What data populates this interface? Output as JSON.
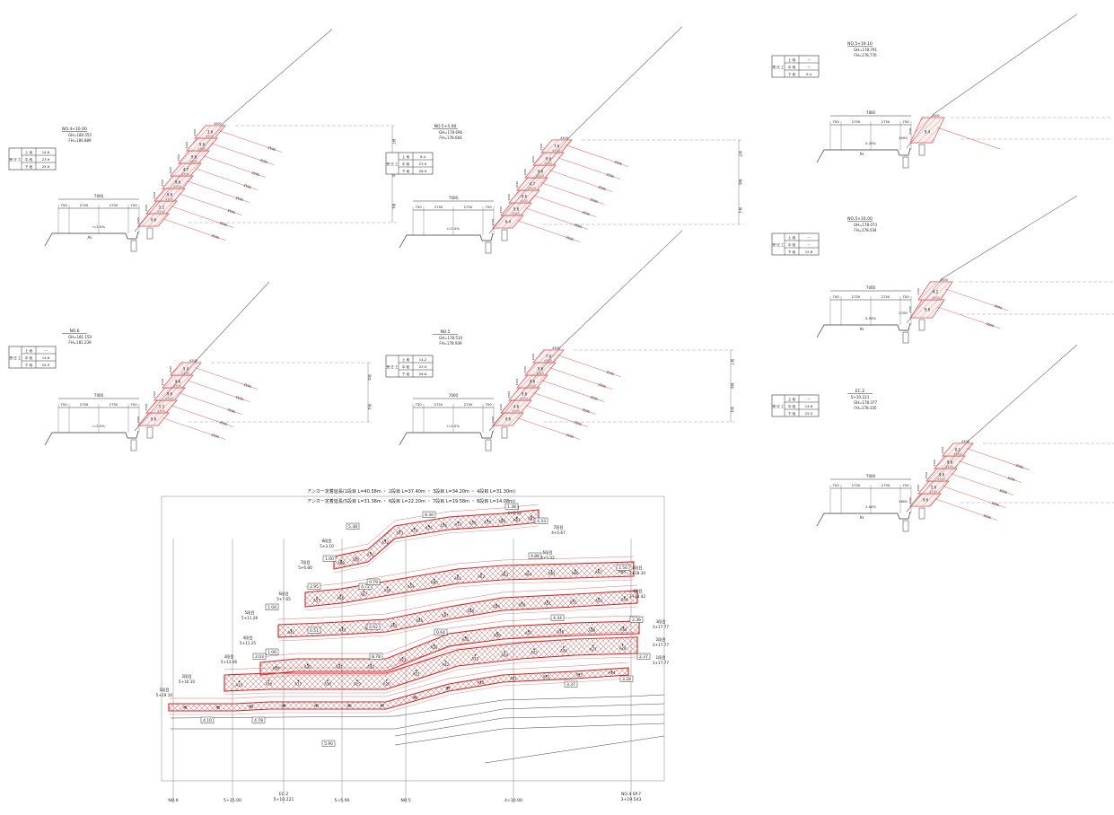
{
  "sections": [
    {
      "id": "sec-4p10",
      "station": "NO.4+10.00",
      "gh": "GH=180.555",
      "fh": "FH=180.889",
      "table": {
        "rows": [
          "上 段",
          "中 段",
          "下 段"
        ],
        "values": [
          "14.8",
          "23.9",
          "25.9"
        ],
        "vlabel": "受 圧 工"
      },
      "dims": [
        "7000",
        "750",
        "2750",
        "2750",
        "750"
      ],
      "grade": "i=2.0%",
      "ground": "As",
      "anchor_len": "3500",
      "steps": [
        {
          "label": "9.6",
          "w": "4500",
          "h": "2500"
        },
        {
          "label": "5.2",
          "w": "4500",
          "h": "2500"
        },
        {
          "label": "9.6",
          "w": "4500",
          "h": "2500"
        },
        {
          "label": "9.6",
          "w": "4500",
          "h": "2500"
        },
        {
          "label": "4.7",
          "w": "4500",
          "h": "2500"
        },
        {
          "label": "9.6",
          "w": "4500",
          "h": "2500"
        },
        {
          "label": "9.6",
          "w": "4500",
          "h": "2500"
        },
        {
          "label": "3.6",
          "w": "4500",
          "h": "2500"
        }
      ],
      "tiers": [
        "上段",
        "中段",
        "下段"
      ]
    },
    {
      "id": "sec-6",
      "station": "NO.6",
      "gh": "GH=181.150",
      "fh": "FH=181.239",
      "table": {
        "rows": [
          "上 段",
          "中 段",
          "下 段"
        ],
        "values": [
          "－",
          "14.6",
          "24.9"
        ],
        "vlabel": "受 圧 工"
      },
      "dims": [
        "7000",
        "750",
        "2750",
        "2750",
        "750"
      ],
      "grade": "i=2.0%",
      "anchor_len": "3500",
      "steps": [
        {
          "label": "9.6",
          "w": "4500",
          "h": "2500"
        },
        {
          "label": "5.3",
          "w": "4500",
          "h": "2500"
        },
        {
          "label": "9.6",
          "w": "4500",
          "h": "2500"
        },
        {
          "label": "9.6",
          "w": "4500",
          "h": "2500"
        },
        {
          "label": "5.4",
          "w": "4500",
          "h": "2500"
        }
      ],
      "tiers": [
        "中段",
        "下段"
      ]
    },
    {
      "id": "sec-5p5",
      "station": "NO.5+5.00",
      "gh": "GH=178.696",
      "fh": "FH=178.664",
      "table": {
        "rows": [
          "上 段",
          "中 段",
          "下 段"
        ],
        "values": [
          "6.4",
          "23.9",
          "26.9"
        ],
        "vlabel": "受 圧 工"
      },
      "dims": [
        "7000",
        "750",
        "2750",
        "2750",
        "750"
      ],
      "grade": "i=2.0%",
      "anchor_len": "3500",
      "steps": [
        {
          "label": "6.4",
          "w": "4500",
          "h": "2500"
        },
        {
          "label": "9.6",
          "w": "4500",
          "h": "2500"
        },
        {
          "label": "9.6",
          "w": "4500",
          "h": "2500"
        },
        {
          "label": "4.7",
          "w": "4500",
          "h": "2500"
        },
        {
          "label": "9.6",
          "w": "4500",
          "h": "2500"
        },
        {
          "label": "9.6",
          "w": "4500",
          "h": "2500"
        },
        {
          "label": "7.6",
          "w": "4500",
          "h": "2500"
        }
      ],
      "tiers": [
        "上段",
        "中段",
        "下段"
      ]
    },
    {
      "id": "sec-5",
      "station": "NO.5",
      "gh": "GH=178.510",
      "fh": "FH=178.939",
      "table": {
        "rows": [
          "上 段",
          "中 段",
          "下 段"
        ],
        "values": [
          "14.2",
          "23.9",
          "26.6"
        ],
        "vlabel": "受 圧 工"
      },
      "dims": [
        "7000",
        "750",
        "2750",
        "2750",
        "750"
      ],
      "grade": "i=2.0%",
      "anchor_len": "3500",
      "steps": [
        {
          "label": "9.6",
          "w": "4500",
          "h": "2500"
        },
        {
          "label": "4.6",
          "w": "4500",
          "h": "2500"
        },
        {
          "label": "9.6",
          "w": "4500",
          "h": "2500"
        },
        {
          "label": "9.6",
          "w": "4500",
          "h": "2500"
        },
        {
          "label": "9.6",
          "w": "4500",
          "h": "2500"
        },
        {
          "label": "7.6",
          "w": "4500",
          "h": "2500"
        }
      ],
      "tiers": [
        "上段",
        "中段",
        "下段"
      ]
    },
    {
      "id": "sec-5p19",
      "station": "NO.5+19.10",
      "gh": "GH=178.791",
      "fh": "FH=178.776",
      "table": {
        "rows": [
          "上 段",
          "中 段",
          "下 段"
        ],
        "values": [
          "－",
          "－",
          "9.4"
        ],
        "vlabel": "受 圧 工"
      },
      "dims": [
        "7800",
        "750",
        "2750",
        "2750",
        "750"
      ],
      "grade": "0.25%",
      "ground": "As",
      "extra": "1000",
      "steps": [
        {
          "label": "9.4",
          "w": "4500",
          "h": "2500"
        }
      ]
    },
    {
      "id": "sec-5p10",
      "station": "NO.5+10.00",
      "gh": "GH=178.073",
      "fh": "FH=178.034",
      "table": {
        "rows": [
          "上 段",
          "中 段",
          "下 段"
        ],
        "values": [
          "－",
          "－",
          "15.8"
        ],
        "vlabel": "受 圧 工"
      },
      "dims": [
        "7000",
        "750",
        "2750",
        "2750",
        "750"
      ],
      "grade": "0.55%",
      "ground": "As",
      "extra": "1700",
      "anchor_len": "3000",
      "steps": [
        {
          "label": "9.6",
          "w": "4500",
          "h": "2500"
        },
        {
          "label": "6.2",
          "w": "4500",
          "h": "2500"
        }
      ]
    },
    {
      "id": "sec-ec2",
      "station": "EC.2",
      "sub": "5+10.221",
      "gh": "GH=178.377",
      "fh": "FH=178.335",
      "table": {
        "rows": [
          "上 段",
          "中 段",
          "下 段"
        ],
        "values": [
          "－",
          "14.6",
          "25.3"
        ],
        "vlabel": "受 圧 工"
      },
      "dims": [
        "7000",
        "750",
        "2750",
        "2750",
        "750"
      ],
      "grade": "1.50%",
      "ground": "As",
      "extra": "1600",
      "anchor_len": "3000",
      "steps": [
        {
          "label": "9.6",
          "w": "4500",
          "h": "2500"
        },
        {
          "label": "5.6",
          "w": "4500",
          "h": "2500"
        },
        {
          "label": "9.6",
          "w": "4500",
          "h": "2500"
        },
        {
          "label": "9.6",
          "w": "4500",
          "h": "2500"
        },
        {
          "label": "6.1",
          "w": "4500",
          "h": "2500"
        }
      ]
    }
  ],
  "plan": {
    "title1": "アンカー定着延長(1段目 L=40.58m ・ 2段目 L=37.40m ・ 3段目 L=34.20m ・ 4段目 L=31.30m)",
    "title2": "アンカー定着延長(5段目 L=31.38m ・ 6段目 L=22.20m ・ 7段目 L=19.58m ・ 8段目 L=14.08m)",
    "stations": [
      "NO.6",
      "5+15.00",
      "EC.2",
      "5+10.221",
      "5+5.00",
      "NO.5",
      "4+10.00",
      "NO.4",
      "SP.7",
      "3+19.543"
    ],
    "tier_labels": [
      {
        "tier": "1段目",
        "sta": "5+19.10"
      },
      {
        "tier": "2段目",
        "sta": "5+16.10"
      },
      {
        "tier": "3段目",
        "sta": "5+13.06"
      },
      {
        "tier": "4段目",
        "sta": "5+11.25"
      },
      {
        "tier": "5段目",
        "sta": "5+11.28"
      },
      {
        "tier": "6段目",
        "sta": "5+7.65"
      },
      {
        "tier": "7段目",
        "sta": "5+6.80"
      },
      {
        "tier": "8段目",
        "sta": "5+3.10"
      },
      {
        "tier": "8段目",
        "sta": "4+8.64"
      },
      {
        "tier": "7段目",
        "sta": "4+5.67"
      },
      {
        "tier": "6段目",
        "sta": "4+5.02"
      },
      {
        "tier": "5段目",
        "sta": "3+18.34"
      },
      {
        "tier": "4段目",
        "sta": "3+18.42"
      },
      {
        "tier": "3段目",
        "sta": "3+17.77"
      },
      {
        "tier": "2段目",
        "sta": "3+17.77"
      },
      {
        "tier": "1段目",
        "sta": "3+17.77"
      }
    ],
    "boxed_values": [
      "5.38",
      "8.30",
      "1.38",
      "4.33",
      "1.00",
      "4.72",
      "0.79",
      "1.04",
      "2.95",
      "0.51",
      "1.56",
      "4.88",
      "4.34",
      "1.06",
      "2.03",
      "0.92",
      "0.64",
      "8.78",
      "2.36",
      "2.37",
      "4.10",
      "5.90",
      "4.78",
      "3.28",
      "3.37"
    ],
    "anchors_row1": [
      "A1",
      "A2",
      "A3",
      "A4",
      "A5",
      "A6",
      "A7",
      "A8",
      "A9",
      "A10",
      "A11",
      "A12",
      "A13",
      "A14"
    ],
    "anchors_row2": [
      "A15",
      "A16",
      "A17",
      "A18",
      "A19",
      "A20",
      "A21",
      "A22",
      "A23",
      "A24",
      "A25",
      "A26",
      "A27",
      "A28"
    ],
    "anchors_row3": [
      "A29",
      "A30",
      "A31",
      "A32",
      "A33",
      "A34",
      "A35",
      "A36",
      "A37",
      "A38",
      "A39",
      "A40"
    ],
    "anchors_row4": [
      "A41",
      "A42",
      "A43",
      "A44",
      "A45",
      "A46",
      "A47",
      "A48",
      "A49",
      "A50",
      "A51",
      "A52",
      "A53",
      "A54"
    ],
    "anchors_row5": [
      "A55",
      "A56",
      "A57",
      "A58",
      "A59",
      "A60",
      "A61",
      "A62",
      "A63",
      "A64",
      "A65",
      "A66",
      "A67",
      "A68"
    ],
    "anchors_row6": [
      "A69",
      "A70",
      "A71",
      "A72",
      "A73",
      "A74",
      "A75",
      "A76",
      "A77",
      "A78",
      "A79",
      "A80",
      "A81",
      "A82"
    ]
  }
}
